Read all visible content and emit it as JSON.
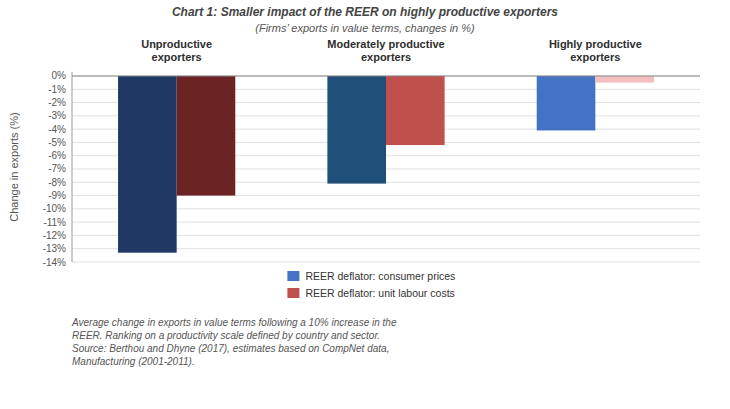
{
  "chart_data": {
    "type": "bar",
    "title": "Chart 1: Smaller impact of the REER on highly productive exporters",
    "subtitle": "(Firms’ exports in value terms, changes in %)",
    "ylabel": "Change in exports  (%)",
    "footnote": "Average change in exports in value terms following a 10% increase in the\nREER. Ranking on a productivity scale defined by country and sector.\nSource: Berthou and Dhyne (2017), estimates based on CompNet data,\nManufacturing (2001-2011).",
    "categories": [
      "Unproductive\nexporters",
      "Moderately productive\nexporters",
      "Highly productive\nexporters"
    ],
    "series": [
      {
        "name": "REER deflator: consumer prices",
        "color": "#4472C4",
        "colors": [
          "#1F3864",
          "#1F4E79",
          "#4472C4"
        ],
        "values": [
          -13.3,
          -8.1,
          -4.1
        ]
      },
      {
        "name": "REER deflator: unit labour costs",
        "color": "#C0504D",
        "colors": [
          "#6B2323",
          "#C0504D",
          "#F2BFBF"
        ],
        "values": [
          -9.0,
          -5.2,
          -0.5
        ]
      }
    ],
    "ylim": [
      -14,
      0.3
    ],
    "yticks": [
      {
        "value": 0,
        "label": "0%"
      },
      {
        "value": -1,
        "label": "-1%"
      },
      {
        "value": -2,
        "label": "-2%"
      },
      {
        "value": -3,
        "label": "-3%"
      },
      {
        "value": -4,
        "label": "-4%"
      },
      {
        "value": -5,
        "label": "-5%"
      },
      {
        "value": -6,
        "label": "-6%"
      },
      {
        "value": -7,
        "label": "-7%"
      },
      {
        "value": -8,
        "label": "-8%"
      },
      {
        "value": -9,
        "label": "-9%"
      },
      {
        "value": -10,
        "label": "-10%"
      },
      {
        "value": -11,
        "label": "-11%"
      },
      {
        "value": -12,
        "label": "-12%"
      },
      {
        "value": -13,
        "label": "-13%"
      },
      {
        "value": -14,
        "label": "-14%"
      }
    ],
    "grid": true,
    "legend": "bottom"
  }
}
